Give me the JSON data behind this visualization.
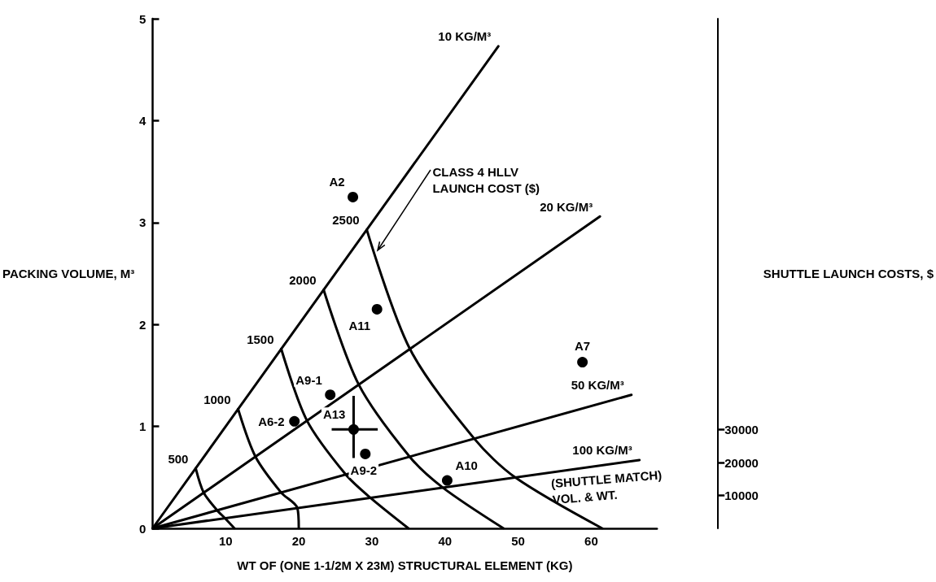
{
  "chart_data": {
    "type": "line",
    "xlabel": "WT OF (ONE 1-1/2M X 23M) STRUCTURAL ELEMENT (KG)",
    "ylabel": "PACKING VOLUME, M³",
    "y2label": "SHUTTLE LAUNCH COSTS, $",
    "xlim": [
      0,
      69
    ],
    "xticks": [
      10,
      20,
      30,
      40,
      50,
      60
    ],
    "ylim": [
      0,
      5
    ],
    "yticks": [
      0,
      1,
      2,
      3,
      4,
      5
    ],
    "y2lim": [
      0,
      155000
    ],
    "y2ticks": [
      10000,
      20000,
      30000
    ],
    "grid": false,
    "legend": false,
    "series": [
      {
        "name": "10 KG/M³",
        "type": "line",
        "color": "#000000",
        "x": [
          0,
          47.3
        ],
        "values": [
          0,
          4.73
        ]
      },
      {
        "name": "20 KG/M³",
        "type": "line",
        "color": "#000000",
        "x": [
          0,
          61.2
        ],
        "values": [
          0,
          3.06
        ]
      },
      {
        "name": "50 KG/M³",
        "type": "line",
        "color": "#000000",
        "x": [
          0,
          65.5
        ],
        "values": [
          0,
          1.31
        ]
      },
      {
        "name": "100 KG/M³",
        "type": "line",
        "color": "#000000",
        "x": [
          0,
          66.6
        ],
        "values": [
          0,
          0.67
        ]
      },
      {
        "name": "500",
        "type": "line",
        "color": "#000000",
        "x": [
          5.9,
          7,
          8.8,
          9.9,
          11.2
        ],
        "values": [
          0.59,
          0.35,
          0.18,
          0.1,
          0
        ]
      },
      {
        "name": "1000",
        "type": "line",
        "color": "#000000",
        "x": [
          11.7,
          14.1,
          17.6,
          19.8,
          20
        ],
        "values": [
          1.17,
          0.7,
          0.35,
          0.2,
          0
        ]
      },
      {
        "name": "1500",
        "type": "line",
        "color": "#000000",
        "x": [
          17.6,
          21.1,
          26.4,
          29.8,
          35
        ],
        "values": [
          1.76,
          1.06,
          0.53,
          0.3,
          0
        ]
      },
      {
        "name": "2000",
        "type": "line",
        "color": "#000000",
        "x": [
          23.4,
          28.2,
          35.2,
          39.7,
          48
        ],
        "values": [
          2.34,
          1.41,
          0.7,
          0.4,
          0
        ]
      },
      {
        "name": "2500",
        "type": "line",
        "color": "#000000",
        "x": [
          29.3,
          35.2,
          44,
          49.6,
          61.5
        ],
        "values": [
          2.93,
          1.76,
          0.88,
          0.5,
          0
        ]
      },
      {
        "type": "scatter",
        "marker": "circle",
        "color": "#000000",
        "x": [
          27.4,
          30.7,
          24.3,
          19.4,
          27.5,
          29.1,
          40.3,
          58.8
        ],
        "values": [
          3.25,
          2.15,
          1.31,
          1.05,
          0.97,
          0.73,
          0.47,
          1.63
        ],
        "errors": [
          null,
          null,
          null,
          null,
          [
            0.69,
            1.3
          ],
          null,
          null,
          null
        ],
        "xerrors": [
          null,
          null,
          null,
          null,
          [
            24.5,
            30.8
          ],
          null,
          null,
          null
        ]
      }
    ],
    "annotations": [
      {
        "text": "A2",
        "x": 27.4,
        "y": 3.25
      },
      {
        "text": "A11",
        "x": 30.7,
        "y": 2.15
      },
      {
        "text": "A9-1",
        "x": 24.3,
        "y": 1.31
      },
      {
        "text": "A6-2",
        "x": 19.4,
        "y": 1.05
      },
      {
        "text": "A13",
        "x": 27.5,
        "y": 0.97
      },
      {
        "text": "A9-2",
        "x": 29.1,
        "y": 0.73
      },
      {
        "text": "A10",
        "x": 40.3,
        "y": 0.47
      },
      {
        "text": "A7",
        "x": 58.8,
        "y": 1.63
      },
      {
        "text": "CLASS 4 HLLV LAUNCH COST ($)",
        "x": 30.5,
        "y": 2.7
      },
      {
        "text": "(SHUTTLE MATCH) VOL. & WT.",
        "x": 60,
        "y": 0.6
      }
    ]
  }
}
